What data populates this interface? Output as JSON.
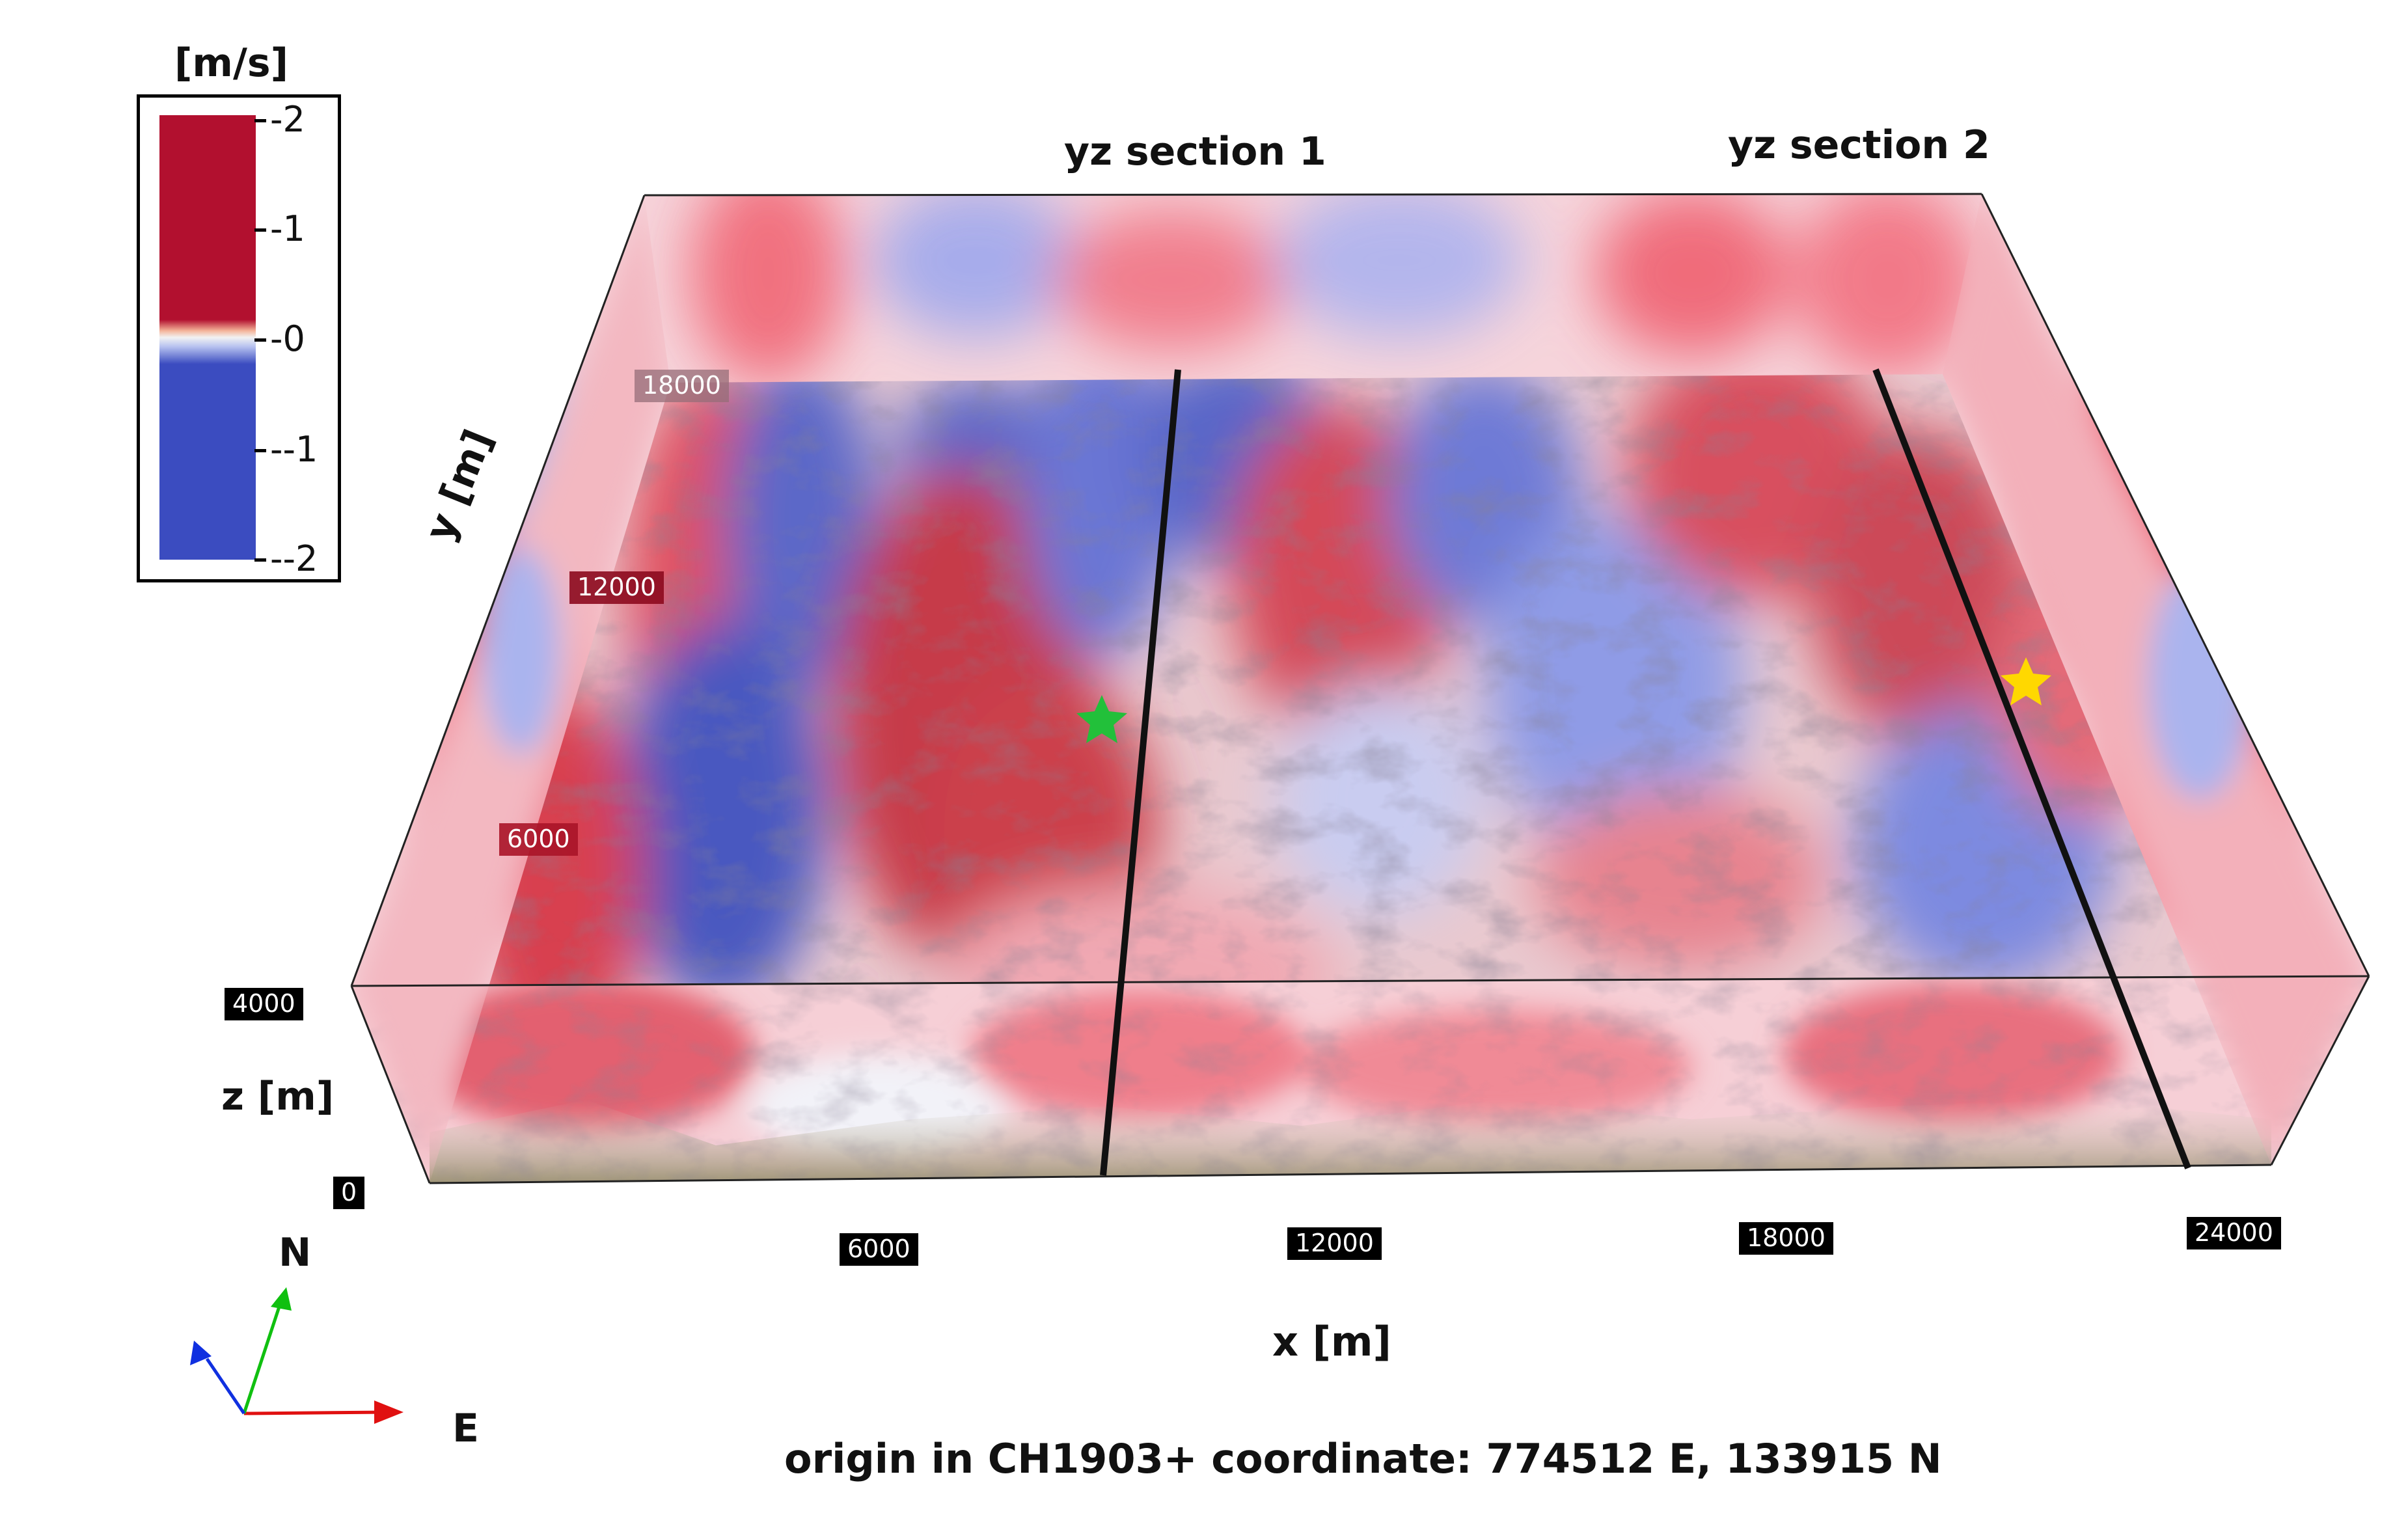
{
  "colorbar": {
    "unit_label": "[m/s]",
    "ticks": [
      "-2",
      "-1",
      "-0",
      "--1",
      "--2"
    ],
    "colors": {
      "positive": "#b2102f",
      "negative": "#3b4cc0",
      "zero": "#f2f2f2"
    }
  },
  "sections": {
    "yz1": "yz section 1",
    "yz2": "yz section 2"
  },
  "axes": {
    "x_label": "x [m]",
    "y_label": "y [m]",
    "z_label": "z [m]",
    "x_ticks": [
      "6000",
      "12000",
      "18000",
      "24000"
    ],
    "y_ticks": [
      "18000",
      "12000",
      "6000"
    ],
    "z_ticks": [
      "4000",
      "0"
    ]
  },
  "compass": {
    "north": "N",
    "east": "E"
  },
  "markers": {
    "green_star": "#22c03a",
    "yellow_star": "#ffd800"
  },
  "caption": "origin in CH1903+ coordinate: 774512 E, 133915 N"
}
